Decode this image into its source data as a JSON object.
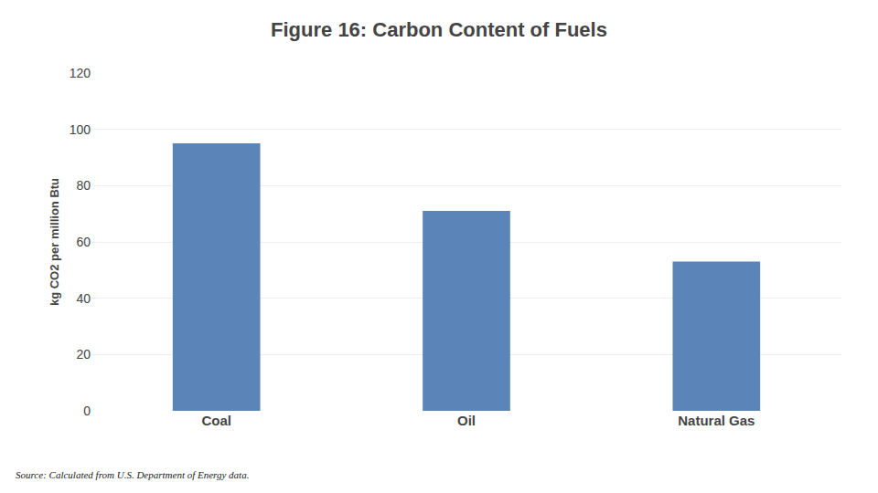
{
  "chart_data": {
    "type": "bar",
    "title": "Figure 16: Carbon Content of Fuels",
    "categories": [
      "Coal",
      "Oil",
      "Natural Gas"
    ],
    "values": [
      95,
      71,
      53
    ],
    "color": "#5b85b8",
    "ylabel": "kg CO2 per million Btu",
    "ylim": [
      0,
      120
    ],
    "yticks": [
      0,
      20,
      40,
      60,
      80,
      100,
      120
    ],
    "grid": true,
    "annotations": [
      "Source: Calculated from U.S. Department of Energy data."
    ]
  }
}
